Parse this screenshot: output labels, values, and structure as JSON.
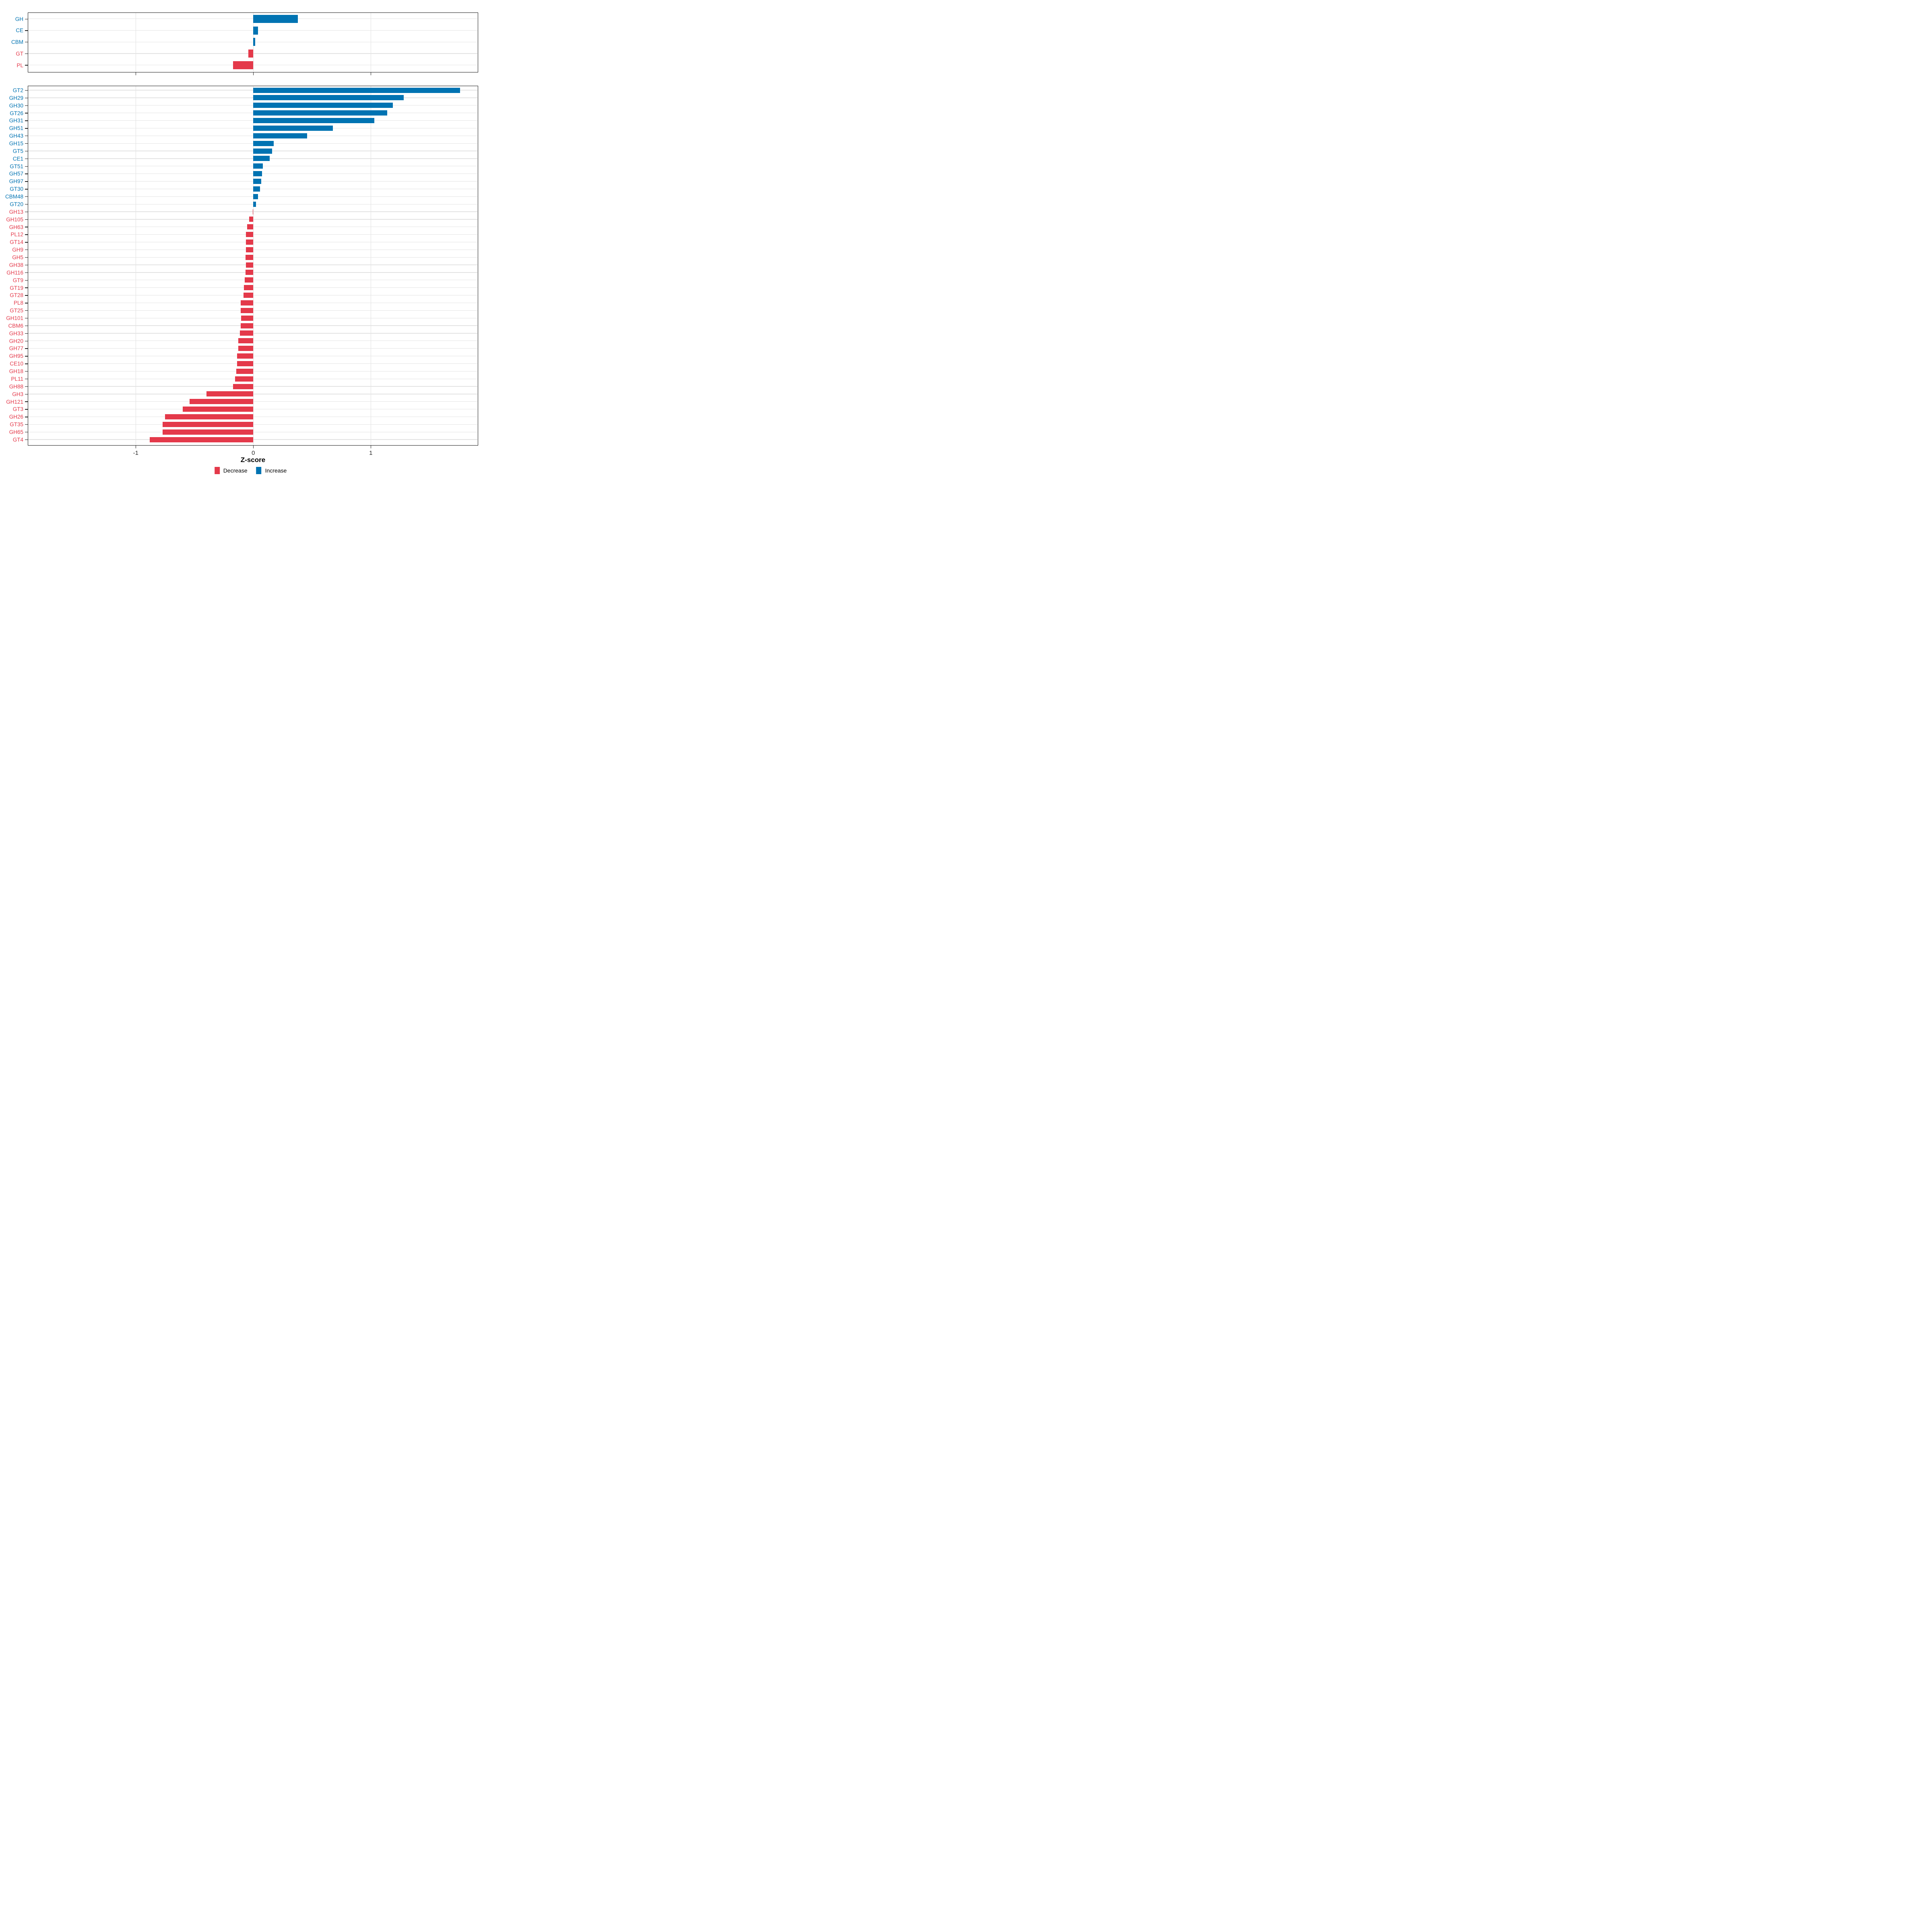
{
  "axis": {
    "xlabel": "Z-score",
    "xticks": [
      "-1",
      "0",
      "1"
    ],
    "xtick_values": [
      -1,
      0,
      1
    ]
  },
  "legend": {
    "items": [
      {
        "label": "Decrease",
        "color": "#E4394A"
      },
      {
        "label": "Increase",
        "color": "#0073B2"
      }
    ]
  },
  "colors": {
    "increase": "#0073B2",
    "decrease": "#E4394A",
    "grid": "#e3e3e3",
    "panel_border": "#1a1a1a"
  },
  "chart_data": [
    {
      "type": "bar",
      "orientation": "horizontal",
      "panel": "enzyme-class",
      "title": "",
      "categories": [
        "GH",
        "CE",
        "CBM",
        "GT",
        "PL"
      ],
      "values": [
        0.38,
        0.041,
        0.016,
        -0.039,
        -0.17
      ],
      "xlabel": "Z-score",
      "ylabel": "",
      "xlim": [
        -1.93,
        1.93
      ],
      "xticks": [
        -1,
        0,
        1
      ],
      "grid": "major",
      "legend_position": "bottom",
      "color_rule": "blue #0073B2 = Increase (value > 0), red #E4394A = Decrease (value < 0); category tick labels share bar color"
    },
    {
      "type": "bar",
      "orientation": "horizontal",
      "panel": "enzyme-family",
      "title": "",
      "categories": [
        "GT2",
        "GH29",
        "GH30",
        "GT26",
        "GH31",
        "GH51",
        "GH43",
        "GH15",
        "GT5",
        "CE1",
        "GT51",
        "GH57",
        "GH97",
        "GT30",
        "CBM48",
        "GT20",
        "GH13",
        "GH105",
        "GH63",
        "PL12",
        "GT14",
        "GH9",
        "GH5",
        "GH38",
        "GH116",
        "GT9",
        "GT19",
        "GT28",
        "PL8",
        "GT25",
        "GH101",
        "CBM6",
        "GH33",
        "GH20",
        "GH77",
        "GH95",
        "CE10",
        "GH18",
        "PL11",
        "GH88",
        "GH3",
        "GH121",
        "GT3",
        "GH26",
        "GT35",
        "GH65",
        "GT4"
      ],
      "values": [
        1.76,
        1.28,
        1.19,
        1.14,
        1.03,
        0.68,
        0.46,
        0.175,
        0.16,
        0.14,
        0.082,
        0.075,
        0.068,
        0.06,
        0.041,
        0.023,
        -0.002,
        -0.035,
        -0.05,
        -0.062,
        -0.062,
        -0.061,
        -0.063,
        -0.062,
        -0.063,
        -0.071,
        -0.077,
        -0.081,
        -0.104,
        -0.104,
        -0.103,
        -0.104,
        -0.111,
        -0.125,
        -0.126,
        -0.136,
        -0.136,
        -0.144,
        -0.154,
        -0.17,
        -0.396,
        -0.54,
        -0.6,
        -0.75,
        -0.77,
        -0.77,
        -0.88
      ],
      "xlabel": "Z-score",
      "ylabel": "",
      "xlim": [
        -1.93,
        1.93
      ],
      "xticks": [
        -1,
        0,
        1
      ],
      "grid": "major",
      "legend_position": "bottom",
      "color_rule": "blue #0073B2 = Increase (value > 0), red #E4394A = Decrease (value < 0); category tick labels share bar color"
    }
  ]
}
